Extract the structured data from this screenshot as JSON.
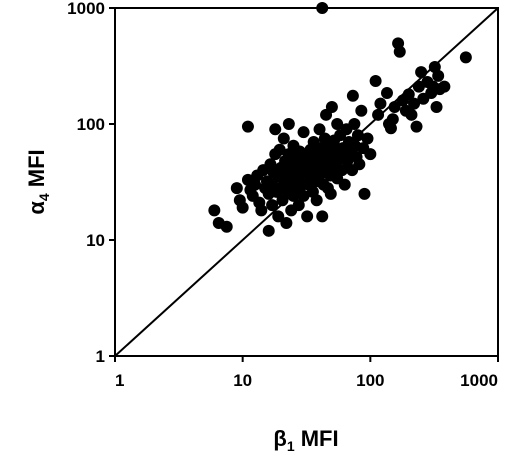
{
  "chart_data": {
    "type": "scatter",
    "title": "",
    "xlabel": {
      "symbol": "β",
      "sub": "1",
      "text": " MFI"
    },
    "ylabel": {
      "symbol": "α",
      "sub": "4",
      "text": " MFI"
    },
    "xscale": "log",
    "yscale": "log",
    "xlim": [
      1,
      1000
    ],
    "ylim": [
      1,
      1000
    ],
    "x_ticks": [
      "1",
      "10",
      "100",
      "1000"
    ],
    "y_ticks": [
      "1",
      "10",
      "100",
      "1000"
    ],
    "grid": false,
    "legend": "none",
    "reference_line": {
      "from": [
        1,
        1
      ],
      "to": [
        1000,
        1000
      ]
    },
    "marker_color": "#000000",
    "points": [
      [
        42,
        1000
      ],
      [
        6,
        18
      ],
      [
        6.5,
        14
      ],
      [
        7.5,
        13
      ],
      [
        11,
        95
      ],
      [
        9,
        28
      ],
      [
        9.5,
        22
      ],
      [
        10,
        19
      ],
      [
        11,
        33
      ],
      [
        11.5,
        27
      ],
      [
        12,
        24
      ],
      [
        12.5,
        30
      ],
      [
        13,
        36
      ],
      [
        13.5,
        21
      ],
      [
        14,
        18
      ],
      [
        14.5,
        40
      ],
      [
        15,
        28
      ],
      [
        15.5,
        32
      ],
      [
        16,
        12
      ],
      [
        16,
        25
      ],
      [
        16.5,
        45
      ],
      [
        17,
        30
      ],
      [
        17,
        20
      ],
      [
        17.5,
        38
      ],
      [
        18,
        90
      ],
      [
        18,
        55
      ],
      [
        18.5,
        26
      ],
      [
        19,
        35
      ],
      [
        19,
        16
      ],
      [
        19.5,
        60
      ],
      [
        20,
        42
      ],
      [
        20,
        28
      ],
      [
        20.5,
        22
      ],
      [
        21,
        75
      ],
      [
        21,
        33
      ],
      [
        21.5,
        48
      ],
      [
        22,
        14
      ],
      [
        22,
        38
      ],
      [
        22.5,
        26
      ],
      [
        23,
        100
      ],
      [
        23,
        55
      ],
      [
        23.5,
        30
      ],
      [
        24,
        18
      ],
      [
        24,
        44
      ],
      [
        24.5,
        36
      ],
      [
        25,
        65
      ],
      [
        25,
        24
      ],
      [
        25.5,
        50
      ],
      [
        26,
        32
      ],
      [
        26.5,
        40
      ],
      [
        27,
        28
      ],
      [
        27.5,
        20
      ],
      [
        28,
        58
      ],
      [
        28,
        36
      ],
      [
        29,
        45
      ],
      [
        29.5,
        30
      ],
      [
        30,
        24
      ],
      [
        30,
        85
      ],
      [
        31,
        52
      ],
      [
        31.5,
        38
      ],
      [
        32,
        16
      ],
      [
        32.5,
        42
      ],
      [
        33,
        30
      ],
      [
        34,
        60
      ],
      [
        34,
        34
      ],
      [
        35,
        48
      ],
      [
        35.5,
        26
      ],
      [
        36,
        70
      ],
      [
        36,
        40
      ],
      [
        37,
        55
      ],
      [
        37.5,
        32
      ],
      [
        38,
        22
      ],
      [
        39,
        44
      ],
      [
        40,
        90
      ],
      [
        40,
        36
      ],
      [
        41,
        62
      ],
      [
        42,
        16
      ],
      [
        42.5,
        50
      ],
      [
        43,
        30
      ],
      [
        44,
        75
      ],
      [
        44,
        40
      ],
      [
        45,
        120
      ],
      [
        46,
        55
      ],
      [
        46.5,
        28
      ],
      [
        47,
        46
      ],
      [
        48,
        65
      ],
      [
        48.5,
        36
      ],
      [
        49,
        25
      ],
      [
        50,
        140
      ],
      [
        50,
        52
      ],
      [
        52,
        72
      ],
      [
        53,
        42
      ],
      [
        54,
        60
      ],
      [
        55,
        34
      ],
      [
        55,
        100
      ],
      [
        57,
        50
      ],
      [
        58,
        80
      ],
      [
        60,
        40
      ],
      [
        61,
        62
      ],
      [
        62,
        55
      ],
      [
        63,
        30
      ],
      [
        65,
        90
      ],
      [
        66,
        48
      ],
      [
        68,
        70
      ],
      [
        70,
        58
      ],
      [
        72,
        40
      ],
      [
        73,
        175
      ],
      [
        75,
        100
      ],
      [
        76,
        65
      ],
      [
        78,
        52
      ],
      [
        80,
        80
      ],
      [
        82,
        45
      ],
      [
        85,
        130
      ],
      [
        88,
        62
      ],
      [
        90,
        25
      ],
      [
        95,
        75
      ],
      [
        100,
        55
      ],
      [
        110,
        235
      ],
      [
        115,
        120
      ],
      [
        120,
        150
      ],
      [
        135,
        185
      ],
      [
        140,
        100
      ],
      [
        145,
        92
      ],
      [
        150,
        110
      ],
      [
        155,
        140
      ],
      [
        165,
        495
      ],
      [
        170,
        420
      ],
      [
        180,
        160
      ],
      [
        190,
        130
      ],
      [
        200,
        180
      ],
      [
        210,
        120
      ],
      [
        220,
        150
      ],
      [
        230,
        95
      ],
      [
        240,
        210
      ],
      [
        250,
        280
      ],
      [
        260,
        165
      ],
      [
        280,
        230
      ],
      [
        300,
        185
      ],
      [
        310,
        210
      ],
      [
        320,
        310
      ],
      [
        330,
        140
      ],
      [
        340,
        260
      ],
      [
        350,
        200
      ],
      [
        380,
        210
      ],
      [
        560,
        375
      ]
    ]
  }
}
